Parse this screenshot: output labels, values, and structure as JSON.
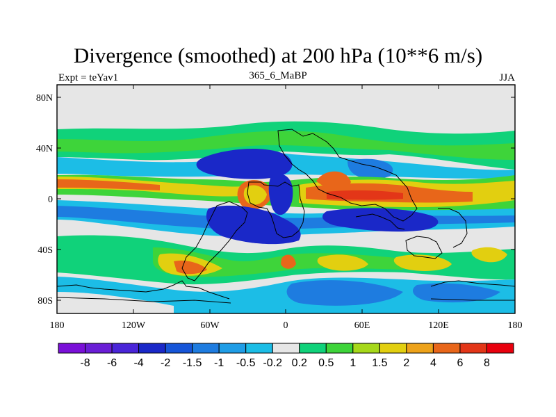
{
  "header": {
    "title": "Divergence (smoothed) at 200 hPa (10**6 m/s)",
    "left": "Expt = teYav1",
    "center": "365_6_MaBP",
    "right": "JJA"
  },
  "axes": {
    "x_ticks": [
      "180",
      "120W",
      "60W",
      "0",
      "60E",
      "120E",
      "180"
    ],
    "y_ticks": [
      "80N",
      "40N",
      "0",
      "40S",
      "80S"
    ]
  },
  "colorbar": {
    "labels": [
      "-8",
      "-6",
      "-4",
      "-2",
      "-1.5",
      "-1",
      "-0.5",
      "-0.2",
      "0.2",
      "0.5",
      "1",
      "1.5",
      "2",
      "4",
      "6",
      "8"
    ],
    "colors": [
      "#7a10d8",
      "#6a1ed6",
      "#4a25d8",
      "#1a28c8",
      "#1655d8",
      "#1e7ce0",
      "#1f9de6",
      "#1cbde6",
      "#e6e6e6",
      "#10d27a",
      "#3ed43a",
      "#a6d81a",
      "#e2cf10",
      "#eda21a",
      "#e8661a",
      "#e33618",
      "#e8000d"
    ]
  },
  "map_colors": {
    "ocean_background": "#e6e6e6",
    "strong_negative": "#1a28c8",
    "negative": "#1e7ce0",
    "weak_negative": "#1cbde6",
    "weak_positive": "#10d27a",
    "positive": "#3ed43a",
    "moderate_positive": "#e2cf10",
    "strong_positive": "#e8661a",
    "very_strong_positive": "#e33618"
  }
}
